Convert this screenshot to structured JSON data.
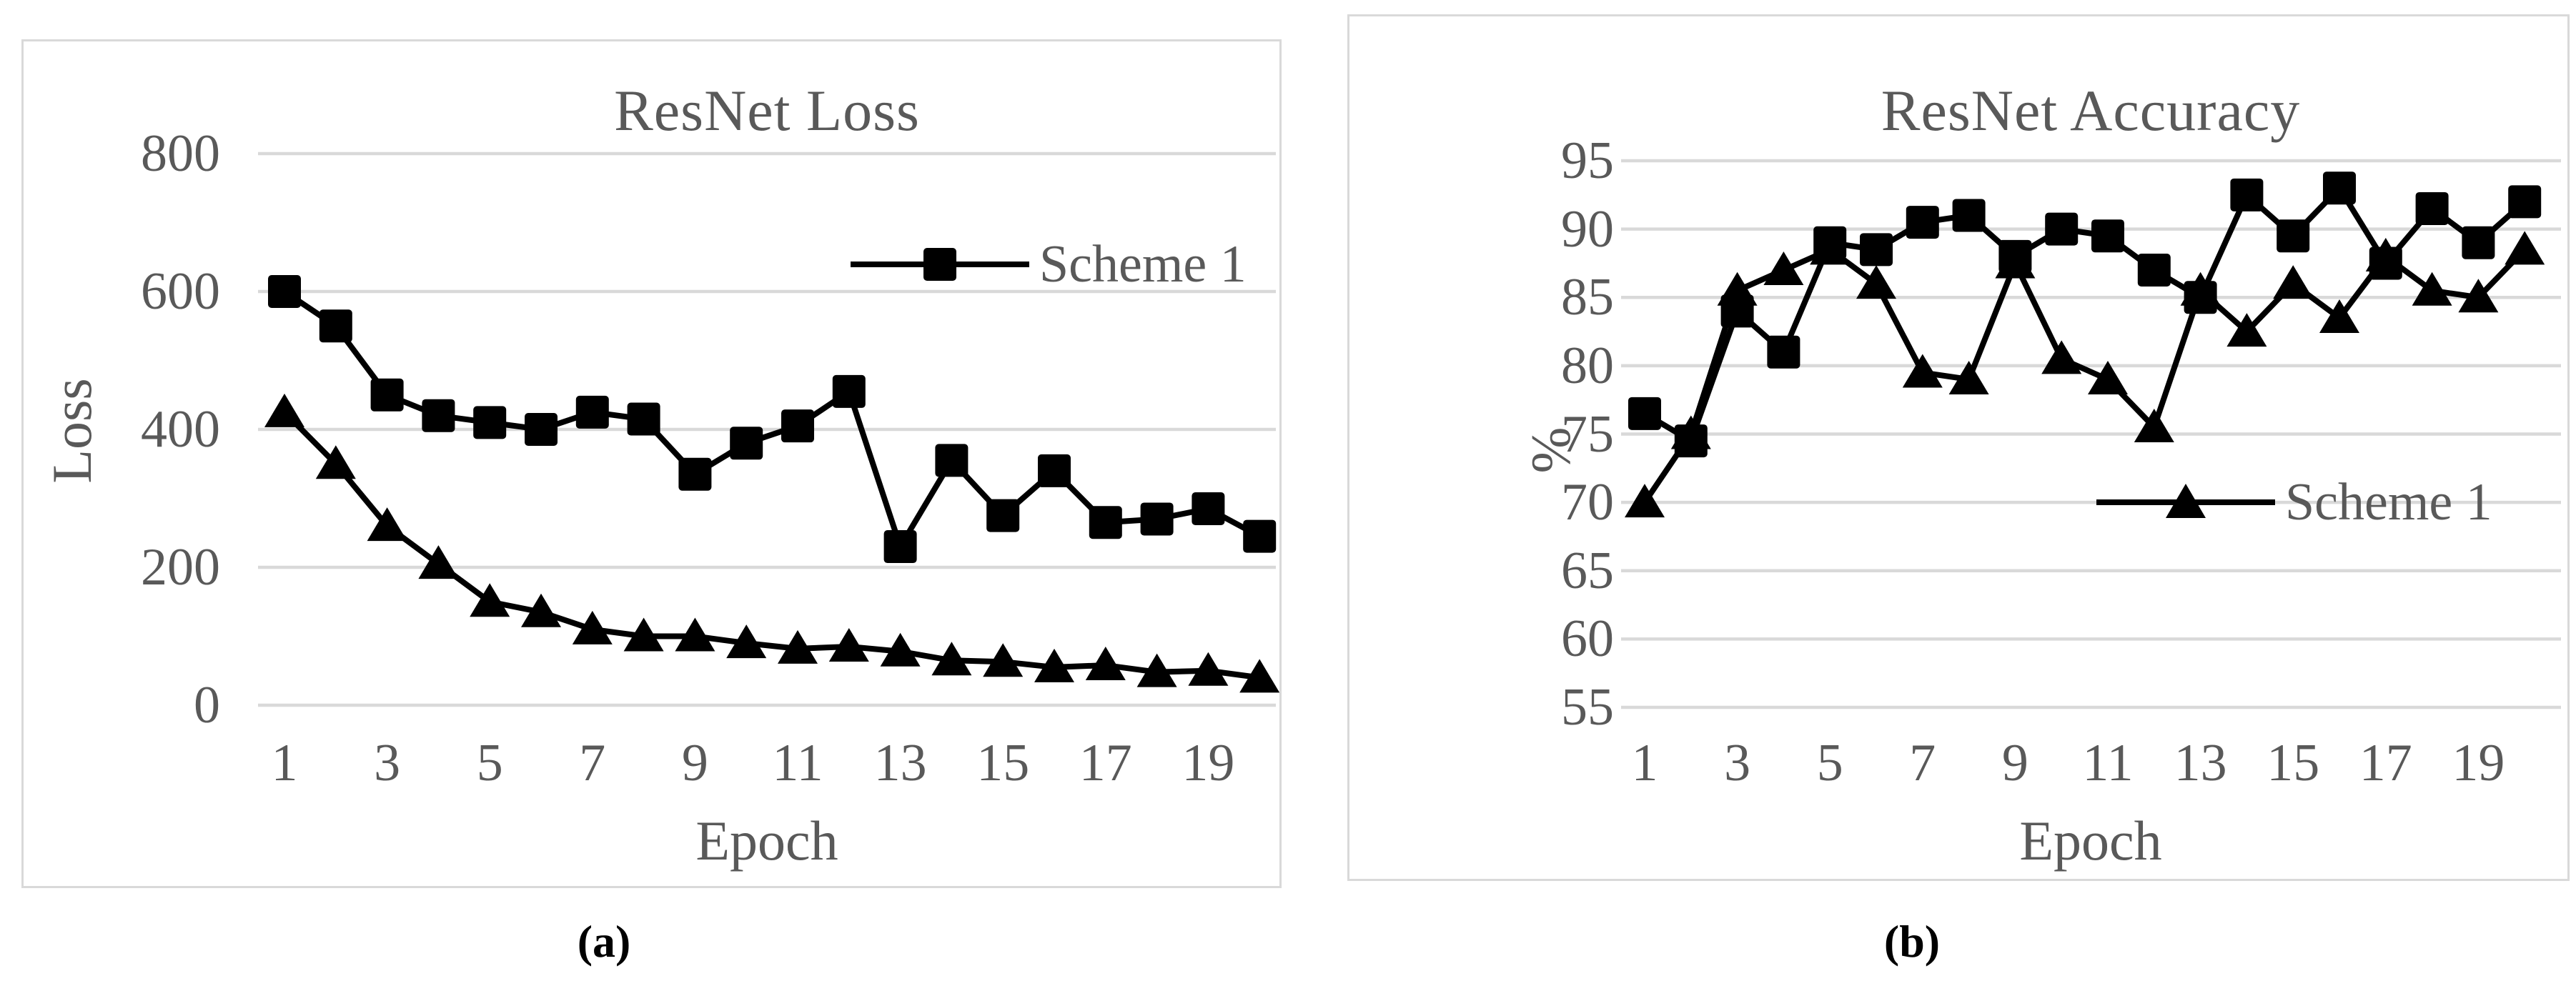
{
  "figure": {
    "captions": {
      "a": "(a)",
      "b": "(b)"
    }
  },
  "colors": {
    "series": "#000000",
    "grid": "#d9d9d9",
    "text": "#595959",
    "panel_border": "#d9d9d9",
    "background": "#ffffff"
  },
  "chart_data": [
    {
      "type": "line",
      "panel": "a",
      "title": "ResNet Loss",
      "xlabel": "Epoch",
      "ylabel": "Loss",
      "x": [
        1,
        2,
        3,
        4,
        5,
        6,
        7,
        8,
        9,
        10,
        11,
        12,
        13,
        14,
        15,
        16,
        17,
        18,
        19,
        20
      ],
      "series": [
        {
          "name": "Scheme 1",
          "marker": "square",
          "values": [
            600,
            550,
            450,
            420,
            410,
            400,
            425,
            415,
            335,
            380,
            405,
            455,
            230,
            355,
            275,
            340,
            265,
            270,
            285,
            245
          ]
        },
        {
          "name": "",
          "marker": "triangle",
          "values": [
            425,
            350,
            260,
            205,
            150,
            135,
            110,
            100,
            100,
            90,
            82,
            85,
            78,
            65,
            63,
            55,
            58,
            48,
            50,
            40
          ]
        }
      ],
      "ylim": [
        0,
        800
      ],
      "yticks": [
        800,
        600,
        400,
        200,
        0
      ],
      "xticks": [
        1,
        3,
        5,
        7,
        9,
        11,
        13,
        15,
        17,
        19
      ],
      "grid": true,
      "legend": {
        "label": "Scheme 1",
        "marker": "square",
        "position": "inside-upper-right"
      }
    },
    {
      "type": "line",
      "panel": "b",
      "title": "ResNet Accuracy",
      "xlabel": "Epoch",
      "ylabel": "%",
      "x": [
        1,
        2,
        3,
        4,
        5,
        6,
        7,
        8,
        9,
        10,
        11,
        12,
        13,
        14,
        15,
        16,
        17,
        18,
        19,
        20
      ],
      "series": [
        {
          "name": "",
          "marker": "square",
          "values": [
            76.5,
            74.5,
            84,
            81,
            89,
            88.5,
            90.5,
            91,
            88,
            90,
            89.5,
            87,
            85,
            92.5,
            89.5,
            93,
            87.5,
            91.5,
            89,
            92
          ]
        },
        {
          "name": "Scheme 1",
          "marker": "triangle",
          "values": [
            70,
            75,
            85.5,
            87,
            88.5,
            86,
            79.5,
            79,
            87.5,
            80.5,
            79,
            75.5,
            85.5,
            82.5,
            86,
            83.5,
            88,
            85.5,
            85,
            88.5
          ]
        }
      ],
      "ylim": [
        55,
        95
      ],
      "yticks": [
        95,
        90,
        85,
        80,
        75,
        70,
        65,
        60,
        55
      ],
      "xticks": [
        1,
        3,
        5,
        7,
        9,
        11,
        13,
        15,
        17,
        19
      ],
      "grid": true,
      "legend": {
        "label": "Scheme 1",
        "marker": "triangle",
        "position": "inside-middle-right"
      }
    }
  ]
}
